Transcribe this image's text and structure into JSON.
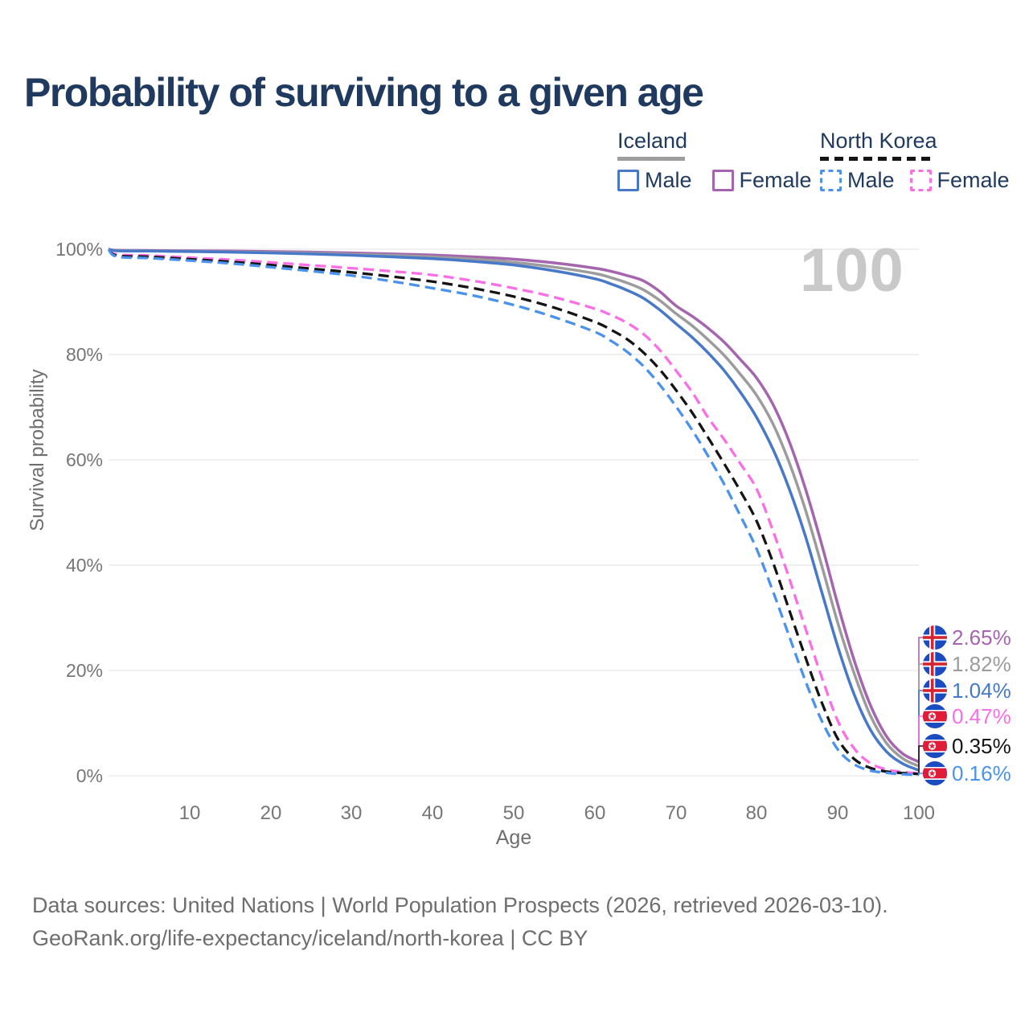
{
  "title": "Probability of surviving to a given age",
  "watermark": "100",
  "legend": {
    "groups": [
      {
        "name": "Iceland",
        "line_style": "solid",
        "underline_color": "#9e9e9e",
        "items": [
          {
            "label": "Male",
            "color": "#4878c8"
          },
          {
            "label": "Female",
            "color": "#a565ae"
          }
        ]
      },
      {
        "name": "North Korea",
        "line_style": "dashed",
        "underline_color": "#141414",
        "items": [
          {
            "label": "Male",
            "color": "#4a92ec"
          },
          {
            "label": "Female",
            "color": "#fb6ee6"
          }
        ]
      }
    ]
  },
  "axes": {
    "y_label": "Survival probability",
    "x_label": "Age",
    "y_ticks": [
      "100%",
      "80%",
      "60%",
      "40%",
      "20%",
      "0%"
    ],
    "x_ticks": [
      "10",
      "20",
      "30",
      "40",
      "50",
      "60",
      "70",
      "80",
      "90",
      "100"
    ]
  },
  "end_labels": [
    {
      "series": "Iceland Female",
      "flag": "iceland",
      "value": "2.65%",
      "color": "#a565ae"
    },
    {
      "series": "Iceland (both sexes)",
      "flag": "iceland",
      "value": "1.82%",
      "color": "#9c9c9c"
    },
    {
      "series": "Iceland Male",
      "flag": "iceland",
      "value": "1.04%",
      "color": "#4878c8"
    },
    {
      "series": "North Korea Female",
      "flag": "north-korea",
      "value": "0.47%",
      "color": "#fb6ee6"
    },
    {
      "series": "North Korea (both sexes)",
      "flag": "north-korea",
      "value": "0.35%",
      "color": "#141414"
    },
    {
      "series": "North Korea Male",
      "flag": "north-korea",
      "value": "0.16%",
      "color": "#4a92ec"
    }
  ],
  "source_line1": "Data sources: United Nations | World Population Prospects (2026, retrieved 2026-03-10).",
  "source_line2": "GeoRank.org/life-expectancy/iceland/north-korea | CC BY",
  "chart_data": {
    "type": "line",
    "title": "Probability of surviving to a given age",
    "xlabel": "Age",
    "ylabel": "Survival probability",
    "xlim": [
      0,
      100
    ],
    "ylim": [
      0,
      100
    ],
    "grid": "horizontal",
    "legend_position": "top-right",
    "y_gridlines_pct": [
      0,
      20,
      40,
      60,
      80,
      100
    ],
    "x": [
      0,
      1,
      5,
      10,
      15,
      20,
      25,
      30,
      35,
      40,
      45,
      50,
      55,
      60,
      62,
      64,
      66,
      68,
      70,
      72,
      74,
      76,
      78,
      80,
      82,
      84,
      86,
      88,
      90,
      92,
      94,
      96,
      98,
      100
    ],
    "series": [
      {
        "id": "iceland-female",
        "name": "Iceland Female",
        "country": "Iceland",
        "sex": "Female",
        "color": "#a565ae",
        "dashed": false,
        "end_label": "2.65%",
        "values": [
          100,
          99.8,
          99.75,
          99.7,
          99.65,
          99.55,
          99.45,
          99.3,
          99.1,
          98.9,
          98.55,
          98.1,
          97.4,
          96.4,
          95.8,
          95.0,
          94.0,
          92.0,
          89.3,
          87.3,
          85.0,
          82.3,
          79.0,
          75.5,
          70.5,
          63.5,
          54.5,
          44.0,
          32.5,
          22.0,
          13.5,
          7.5,
          4.2,
          2.65
        ]
      },
      {
        "id": "iceland-both",
        "name": "Iceland (both sexes)",
        "country": "Iceland",
        "sex": "Both",
        "color": "#9c9c9c",
        "dashed": false,
        "end_label": "1.82%",
        "values": [
          100,
          99.75,
          99.7,
          99.6,
          99.5,
          99.4,
          99.25,
          99.05,
          98.85,
          98.55,
          98.1,
          97.5,
          96.6,
          95.4,
          94.6,
          93.6,
          92.3,
          90.3,
          87.8,
          85.5,
          82.8,
          79.8,
          76.2,
          72.2,
          66.8,
          59.5,
          50.5,
          40.0,
          29.0,
          19.5,
          11.5,
          6.2,
          3.3,
          1.82
        ]
      },
      {
        "id": "iceland-male",
        "name": "Iceland Male",
        "country": "Iceland",
        "sex": "Male",
        "color": "#4878c8",
        "dashed": false,
        "end_label": "1.04%",
        "values": [
          100,
          99.7,
          99.65,
          99.55,
          99.45,
          99.3,
          99.1,
          98.85,
          98.55,
          98.2,
          97.7,
          97.0,
          95.9,
          94.4,
          93.4,
          92.2,
          90.7,
          88.5,
          85.9,
          83.3,
          80.3,
          76.9,
          72.8,
          68.0,
          62.0,
          54.5,
          45.5,
          35.0,
          24.5,
          15.5,
          8.8,
          4.6,
          2.3,
          1.04
        ]
      },
      {
        "id": "nk-female",
        "name": "North Korea Female",
        "country": "North Korea",
        "sex": "Female",
        "color": "#fb6ee6",
        "dashed": true,
        "end_label": "0.47%",
        "values": [
          100,
          99.0,
          98.8,
          98.4,
          98.0,
          97.5,
          96.95,
          96.4,
          95.8,
          95.1,
          94.0,
          92.6,
          90.9,
          88.7,
          87.5,
          86.0,
          83.9,
          80.9,
          77.0,
          72.9,
          68.0,
          63.8,
          59.2,
          54.4,
          46.5,
          37.5,
          28.0,
          18.8,
          10.4,
          5.2,
          2.4,
          1.2,
          0.7,
          0.47
        ]
      },
      {
        "id": "nk-both",
        "name": "North Korea (both sexes)",
        "country": "North Korea",
        "sex": "Both",
        "color": "#141414",
        "dashed": true,
        "end_label": "0.35%",
        "values": [
          100,
          98.8,
          98.55,
          98.1,
          97.6,
          97.0,
          96.3,
          95.6,
          94.8,
          93.85,
          92.6,
          91.0,
          88.9,
          86.2,
          84.7,
          82.9,
          80.4,
          77.2,
          73.3,
          69.0,
          64.2,
          59.2,
          54.0,
          48.3,
          40.5,
          31.5,
          22.5,
          14.0,
          7.0,
          3.2,
          1.5,
          0.8,
          0.5,
          0.35
        ]
      },
      {
        "id": "nk-male",
        "name": "North Korea Male",
        "country": "North Korea",
        "sex": "Male",
        "color": "#4a92ec",
        "dashed": true,
        "end_label": "0.16%",
        "values": [
          100,
          98.6,
          98.3,
          97.85,
          97.3,
          96.6,
          95.85,
          95.0,
          93.9,
          92.6,
          91.2,
          89.4,
          87.1,
          84.3,
          82.6,
          80.5,
          77.8,
          74.3,
          70.2,
          65.7,
          60.7,
          55.3,
          49.3,
          43.0,
          35.0,
          26.5,
          18.0,
          10.5,
          5.0,
          2.2,
          1.0,
          0.55,
          0.3,
          0.16
        ]
      }
    ]
  }
}
